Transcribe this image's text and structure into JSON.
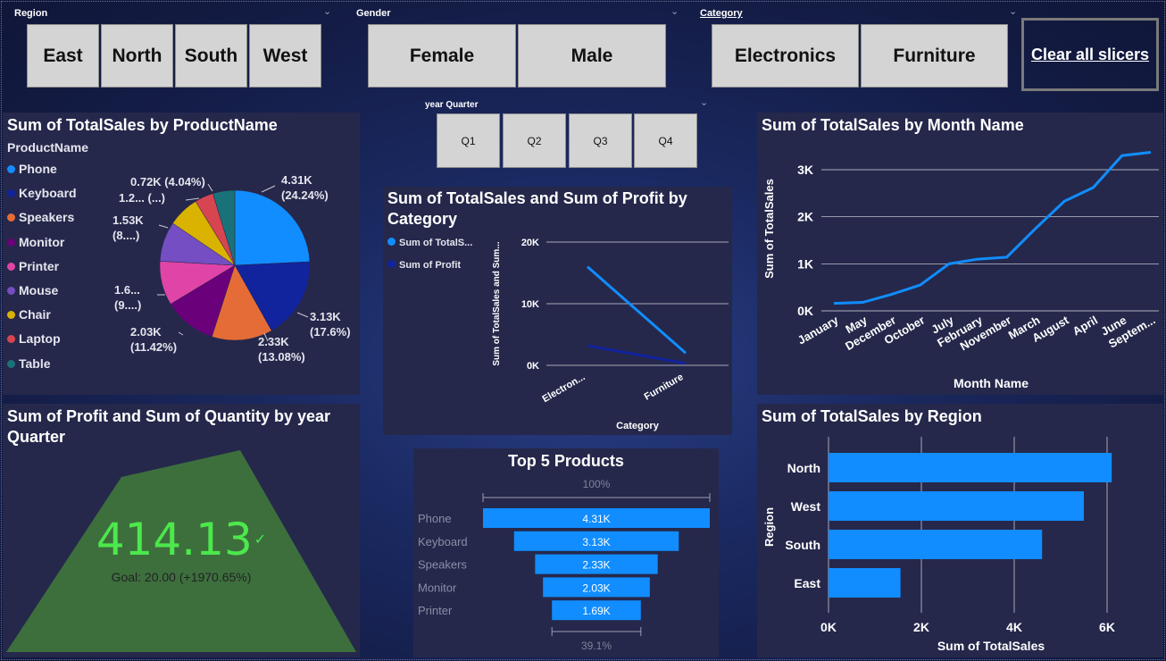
{
  "slicers": {
    "region": {
      "title": "Region",
      "items": [
        "East",
        "North",
        "South",
        "West"
      ]
    },
    "gender": {
      "title": "Gender",
      "items": [
        "Female",
        "Male"
      ]
    },
    "category": {
      "title": "Category",
      "items": [
        "Electronics",
        "Furniture"
      ]
    },
    "quarter": {
      "title": "year Quarter",
      "items": [
        "Q1",
        "Q2",
        "Q3",
        "Q4"
      ]
    },
    "clear_label": "Clear all slicers"
  },
  "pie": {
    "title": "Sum of TotalSales by ProductName",
    "legend_title": "ProductName",
    "legend": [
      {
        "name": "Phone",
        "color": "#118dff"
      },
      {
        "name": "Keyboard",
        "color": "#12239e"
      },
      {
        "name": "Speakers",
        "color": "#e66c37"
      },
      {
        "name": "Monitor",
        "color": "#6b007b"
      },
      {
        "name": "Printer",
        "color": "#e044a7"
      },
      {
        "name": "Mouse",
        "color": "#744ec2"
      },
      {
        "name": "Chair",
        "color": "#d9b300"
      },
      {
        "name": "Laptop",
        "color": "#d64550"
      },
      {
        "name": "Table",
        "color": "#197278"
      }
    ],
    "labels": [
      {
        "l1": "4.31K",
        "l2": "(24.24%)"
      },
      {
        "l1": "3.13K",
        "l2": "(17.6%)"
      },
      {
        "l1": "2.33K",
        "l2": "(13.08%)"
      },
      {
        "l1": "2.03K",
        "l2": "(11.42%)"
      },
      {
        "l1": "1.6...",
        "l2": "(9....)"
      },
      {
        "l1": "1.53K",
        "l2": "(8....)"
      },
      {
        "l1": "1.2... (...)",
        "l2": ""
      },
      {
        "l1": "0.72K (4.04%)",
        "l2": ""
      }
    ]
  },
  "kpi": {
    "title": "Sum of Profit and Sum of Quantity by year Quarter",
    "value": "414.13",
    "check": "✓",
    "goal": "Goal: 20.00 (+1970.65%)"
  },
  "line_cat": {
    "title": "Sum of TotalSales and Sum of Profit by Category",
    "legend": [
      {
        "name": "Sum of TotalS...",
        "color": "#118dff"
      },
      {
        "name": "Sum of Profit",
        "color": "#12239e"
      }
    ],
    "ylabel": "Sum of TotalSales and Sum...",
    "xlabel": "Category",
    "yticks": [
      "20K",
      "10K",
      "0K"
    ],
    "xticks": [
      "Electron...",
      "Furniture"
    ]
  },
  "funnel": {
    "title": "Top 5 Products",
    "top_pct": "100%",
    "bottom_pct": "39.1%"
  },
  "month": {
    "title": "Sum of TotalSales by Month Name",
    "ylabel": "Sum of TotalSales",
    "xlabel": "Month Name",
    "yticks": [
      "3K",
      "2K",
      "1K",
      "0K"
    ]
  },
  "region_bar": {
    "title": "Sum of TotalSales by Region",
    "ylabel": "Region",
    "xlabel": "Sum of TotalSales",
    "xticks": [
      "0K",
      "2K",
      "4K",
      "6K"
    ]
  },
  "chart_data": [
    {
      "type": "pie",
      "title": "Sum of TotalSales by ProductName",
      "categories": [
        "Phone",
        "Keyboard",
        "Speakers",
        "Monitor",
        "Printer",
        "Mouse",
        "Chair",
        "Laptop",
        "Table"
      ],
      "values": [
        4310,
        3130,
        2330,
        2030,
        1690,
        1530,
        1200,
        720,
        840
      ],
      "percents": [
        24.24,
        17.6,
        13.08,
        11.42,
        9.5,
        8.6,
        6.7,
        4.04,
        4.7
      ]
    },
    {
      "type": "line",
      "title": "Sum of TotalSales and Sum of Profit by Category",
      "categories": [
        "Electronics",
        "Furniture"
      ],
      "series": [
        {
          "name": "Sum of TotalSales",
          "values": [
            16000,
            2000
          ]
        },
        {
          "name": "Sum of Profit",
          "values": [
            3200,
            300
          ]
        }
      ],
      "ylim": [
        0,
        20000
      ]
    },
    {
      "type": "line",
      "title": "Sum of TotalSales by Month Name",
      "categories": [
        "January",
        "May",
        "December",
        "October",
        "July",
        "February",
        "November",
        "March",
        "August",
        "April",
        "June",
        "Septem..."
      ],
      "values": [
        160,
        180,
        350,
        550,
        1000,
        1100,
        1140,
        1750,
        2330,
        2620,
        3300,
        3370
      ],
      "ylim": [
        0,
        3400
      ]
    },
    {
      "type": "bar",
      "title": "Sum of TotalSales by Region",
      "categories": [
        "North",
        "West",
        "South",
        "East"
      ],
      "values": [
        6100,
        5500,
        4600,
        1550
      ],
      "xlim": [
        0,
        6800
      ]
    },
    {
      "type": "bar",
      "title": "Top 5 Products",
      "categories": [
        "Phone",
        "Keyboard",
        "Speakers",
        "Monitor",
        "Printer"
      ],
      "values": [
        4310,
        3130,
        2330,
        2030,
        1690
      ],
      "value_labels": [
        "4.31K",
        "3.13K",
        "2.33K",
        "2.03K",
        "1.69K"
      ]
    }
  ]
}
